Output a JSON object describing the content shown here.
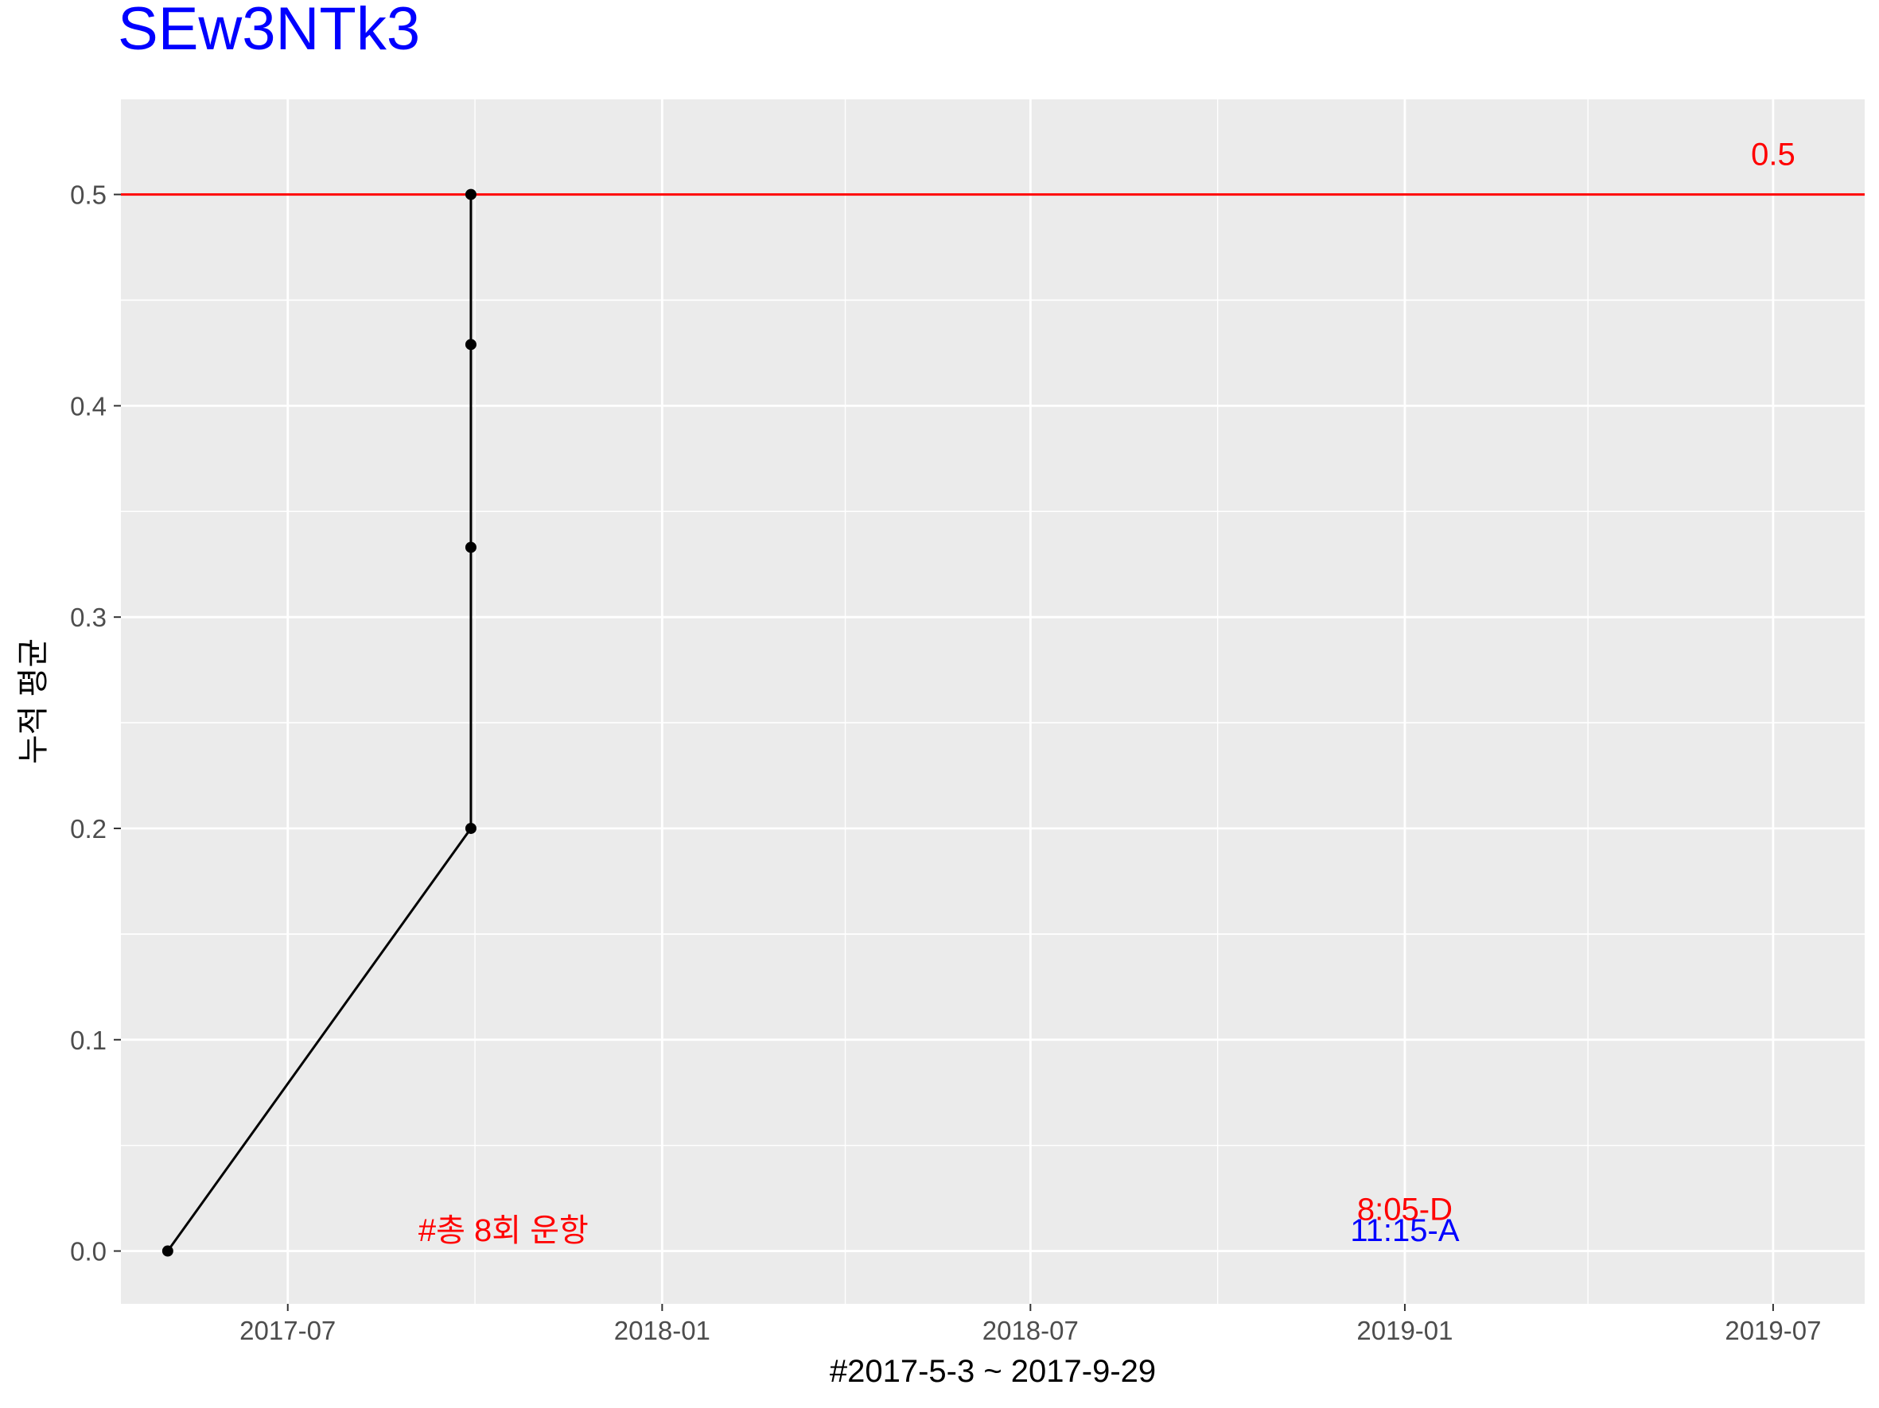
{
  "chart_data": {
    "type": "line",
    "title": "SEw3NTk3",
    "xlabel": "#2017-5-3 ~ 2017-9-29",
    "ylabel": "누적 평균",
    "x_tick_labels": [
      "2017-07",
      "2018-01",
      "2018-07",
      "2019-01",
      "2019-07"
    ],
    "y_tick_labels": [
      "0.0",
      "0.1",
      "0.2",
      "0.3",
      "0.4",
      "0.5"
    ],
    "x_range": [
      "2017-04-10",
      "2019-08-15"
    ],
    "ylim": [
      -0.025,
      0.545
    ],
    "grid": true,
    "legend": "none",
    "series": [
      {
        "points": [
          {
            "x": "2017-05-03",
            "y": 0.0
          },
          {
            "x": "2017-09-29",
            "y": 0.2
          },
          {
            "x": "2017-09-29",
            "y": 0.333
          },
          {
            "x": "2017-09-29",
            "y": 0.429
          },
          {
            "x": "2017-09-29",
            "y": 0.5
          }
        ],
        "color": "#000000"
      }
    ],
    "reference_line": {
      "y": 0.5,
      "label": "0.5",
      "color": "#ff0000"
    },
    "annotations": [
      {
        "text": "#총 8회 운항",
        "x": "2017-10-15",
        "y": 0.01,
        "color": "#ff0000"
      },
      {
        "text": "8:05-D",
        "x": "2019-01-01",
        "y": 0.02,
        "color": "#ff0000"
      },
      {
        "text": "11:15-A",
        "x": "2019-01-01",
        "y": 0.01,
        "color": "#0000ff"
      }
    ],
    "colors": {
      "title": "#0000ff",
      "panel": "#ebebeb",
      "grid": "#ffffff",
      "line": "#000000",
      "reference": "#ff0000"
    }
  }
}
